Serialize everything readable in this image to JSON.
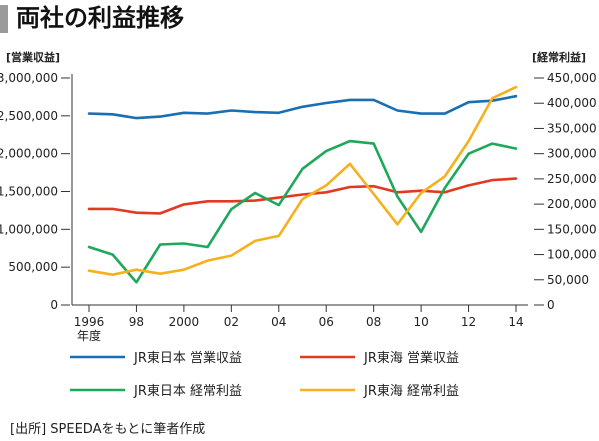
{
  "title": "両社の利益推移",
  "source": "[出所]  SPEEDAをもとに筆者作成",
  "chart_data": {
    "type": "line",
    "left_axis_label": "[営業収益]",
    "right_axis_label": "[経常利益]",
    "x_unit_label": "年度",
    "x": [
      1996,
      1997,
      1998,
      1999,
      2000,
      2001,
      2002,
      2003,
      2004,
      2005,
      2006,
      2007,
      2008,
      2009,
      2010,
      2011,
      2012,
      2013,
      2014
    ],
    "x_tick_values": [
      1996,
      1998,
      2000,
      2002,
      2004,
      2006,
      2008,
      2010,
      2012,
      2014
    ],
    "x_tick_labels": [
      "1996",
      "98",
      "2000",
      "02",
      "04",
      "06",
      "08",
      "10",
      "12",
      "14"
    ],
    "left_ylim": [
      0,
      3000000
    ],
    "left_ticks": [
      0,
      500000,
      1000000,
      1500000,
      2000000,
      2500000,
      3000000
    ],
    "left_tick_labels": [
      "0",
      "500,000",
      "1,000,000",
      "1,500,000",
      "2,000,000",
      "2,500,000",
      "3,000,000"
    ],
    "right_ylim": [
      0,
      450000
    ],
    "right_ticks": [
      0,
      50000,
      100000,
      150000,
      200000,
      250000,
      300000,
      350000,
      400000,
      450000
    ],
    "right_tick_labels": [
      "0",
      "50,000",
      "100,000",
      "150,000",
      "200,000",
      "250,000",
      "300,000",
      "350,000",
      "400,000",
      "450,000"
    ],
    "series": [
      {
        "name": "JR東日本 営業収益",
        "axis": "left",
        "color": "#1a6fb3",
        "values": [
          2530000,
          2520000,
          2470000,
          2490000,
          2540000,
          2530000,
          2570000,
          2550000,
          2540000,
          2620000,
          2670000,
          2710000,
          2710000,
          2570000,
          2530000,
          2530000,
          2680000,
          2700000,
          2760000
        ]
      },
      {
        "name": "JR東海 営業収益",
        "axis": "left",
        "color": "#e23a22",
        "values": [
          1270000,
          1270000,
          1220000,
          1210000,
          1330000,
          1370000,
          1370000,
          1380000,
          1420000,
          1460000,
          1490000,
          1560000,
          1570000,
          1490000,
          1510000,
          1490000,
          1580000,
          1650000,
          1670000
        ]
      },
      {
        "name": "JR東日本 経常利益",
        "axis": "right",
        "color": "#1ea85a",
        "values": [
          115000,
          100000,
          45000,
          120000,
          122000,
          115000,
          190000,
          222000,
          198000,
          270000,
          305000,
          325000,
          320000,
          215000,
          145000,
          232000,
          300000,
          320000,
          310000
        ]
      },
      {
        "name": "JR東海 経常利益",
        "axis": "right",
        "color": "#f5b01e",
        "values": [
          68000,
          60000,
          70000,
          62000,
          70000,
          88000,
          98000,
          127000,
          137000,
          210000,
          237000,
          280000,
          220000,
          160000,
          222000,
          255000,
          325000,
          410000,
          432000
        ]
      }
    ]
  }
}
